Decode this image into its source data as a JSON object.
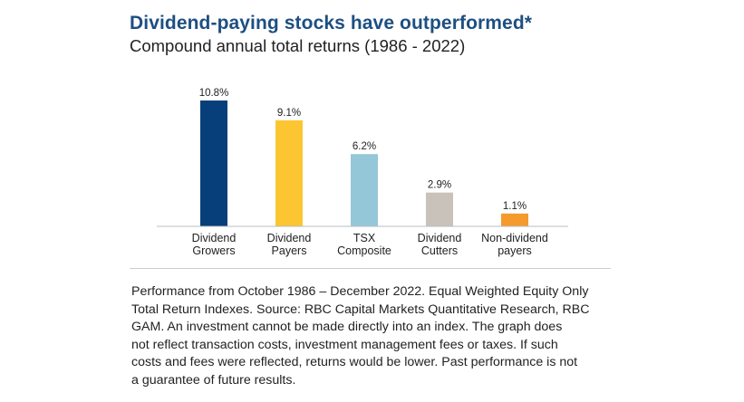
{
  "chart_data": {
    "type": "bar",
    "title": "Dividend-paying stocks have outperformed*",
    "subtitle": "Compound annual total returns (1986 - 2022)",
    "categories": [
      [
        "Dividend",
        "Growers"
      ],
      [
        "Dividend",
        "Payers"
      ],
      [
        "TSX",
        "Composite"
      ],
      [
        "Dividend",
        "Cutters"
      ],
      [
        "Non-dividend",
        "payers"
      ]
    ],
    "values": [
      10.8,
      9.1,
      6.2,
      2.9,
      1.1
    ],
    "data_labels": [
      "10.8%",
      "9.1%",
      "6.2%",
      "2.9%",
      "1.1%"
    ],
    "colors": [
      "#063f7a",
      "#fcc632",
      "#94c7d8",
      "#c9c2ba",
      "#f59a2c"
    ],
    "ylim": [
      0,
      11
    ],
    "grid": false,
    "legend": "none"
  },
  "footnote": [
    "Performance from October 1986 – December 2022. Equal Weighted Equity Only",
    "Total Return Indexes. Source: RBC Capital Markets Quantitative Research, RBC",
    "GAM. An investment cannot be made directly into an index. The graph does",
    "not reflect transaction costs, investment management fees or taxes. If such",
    "costs and fees were reflected, returns would be lower. Past performance is not",
    "a guarantee of future results."
  ]
}
